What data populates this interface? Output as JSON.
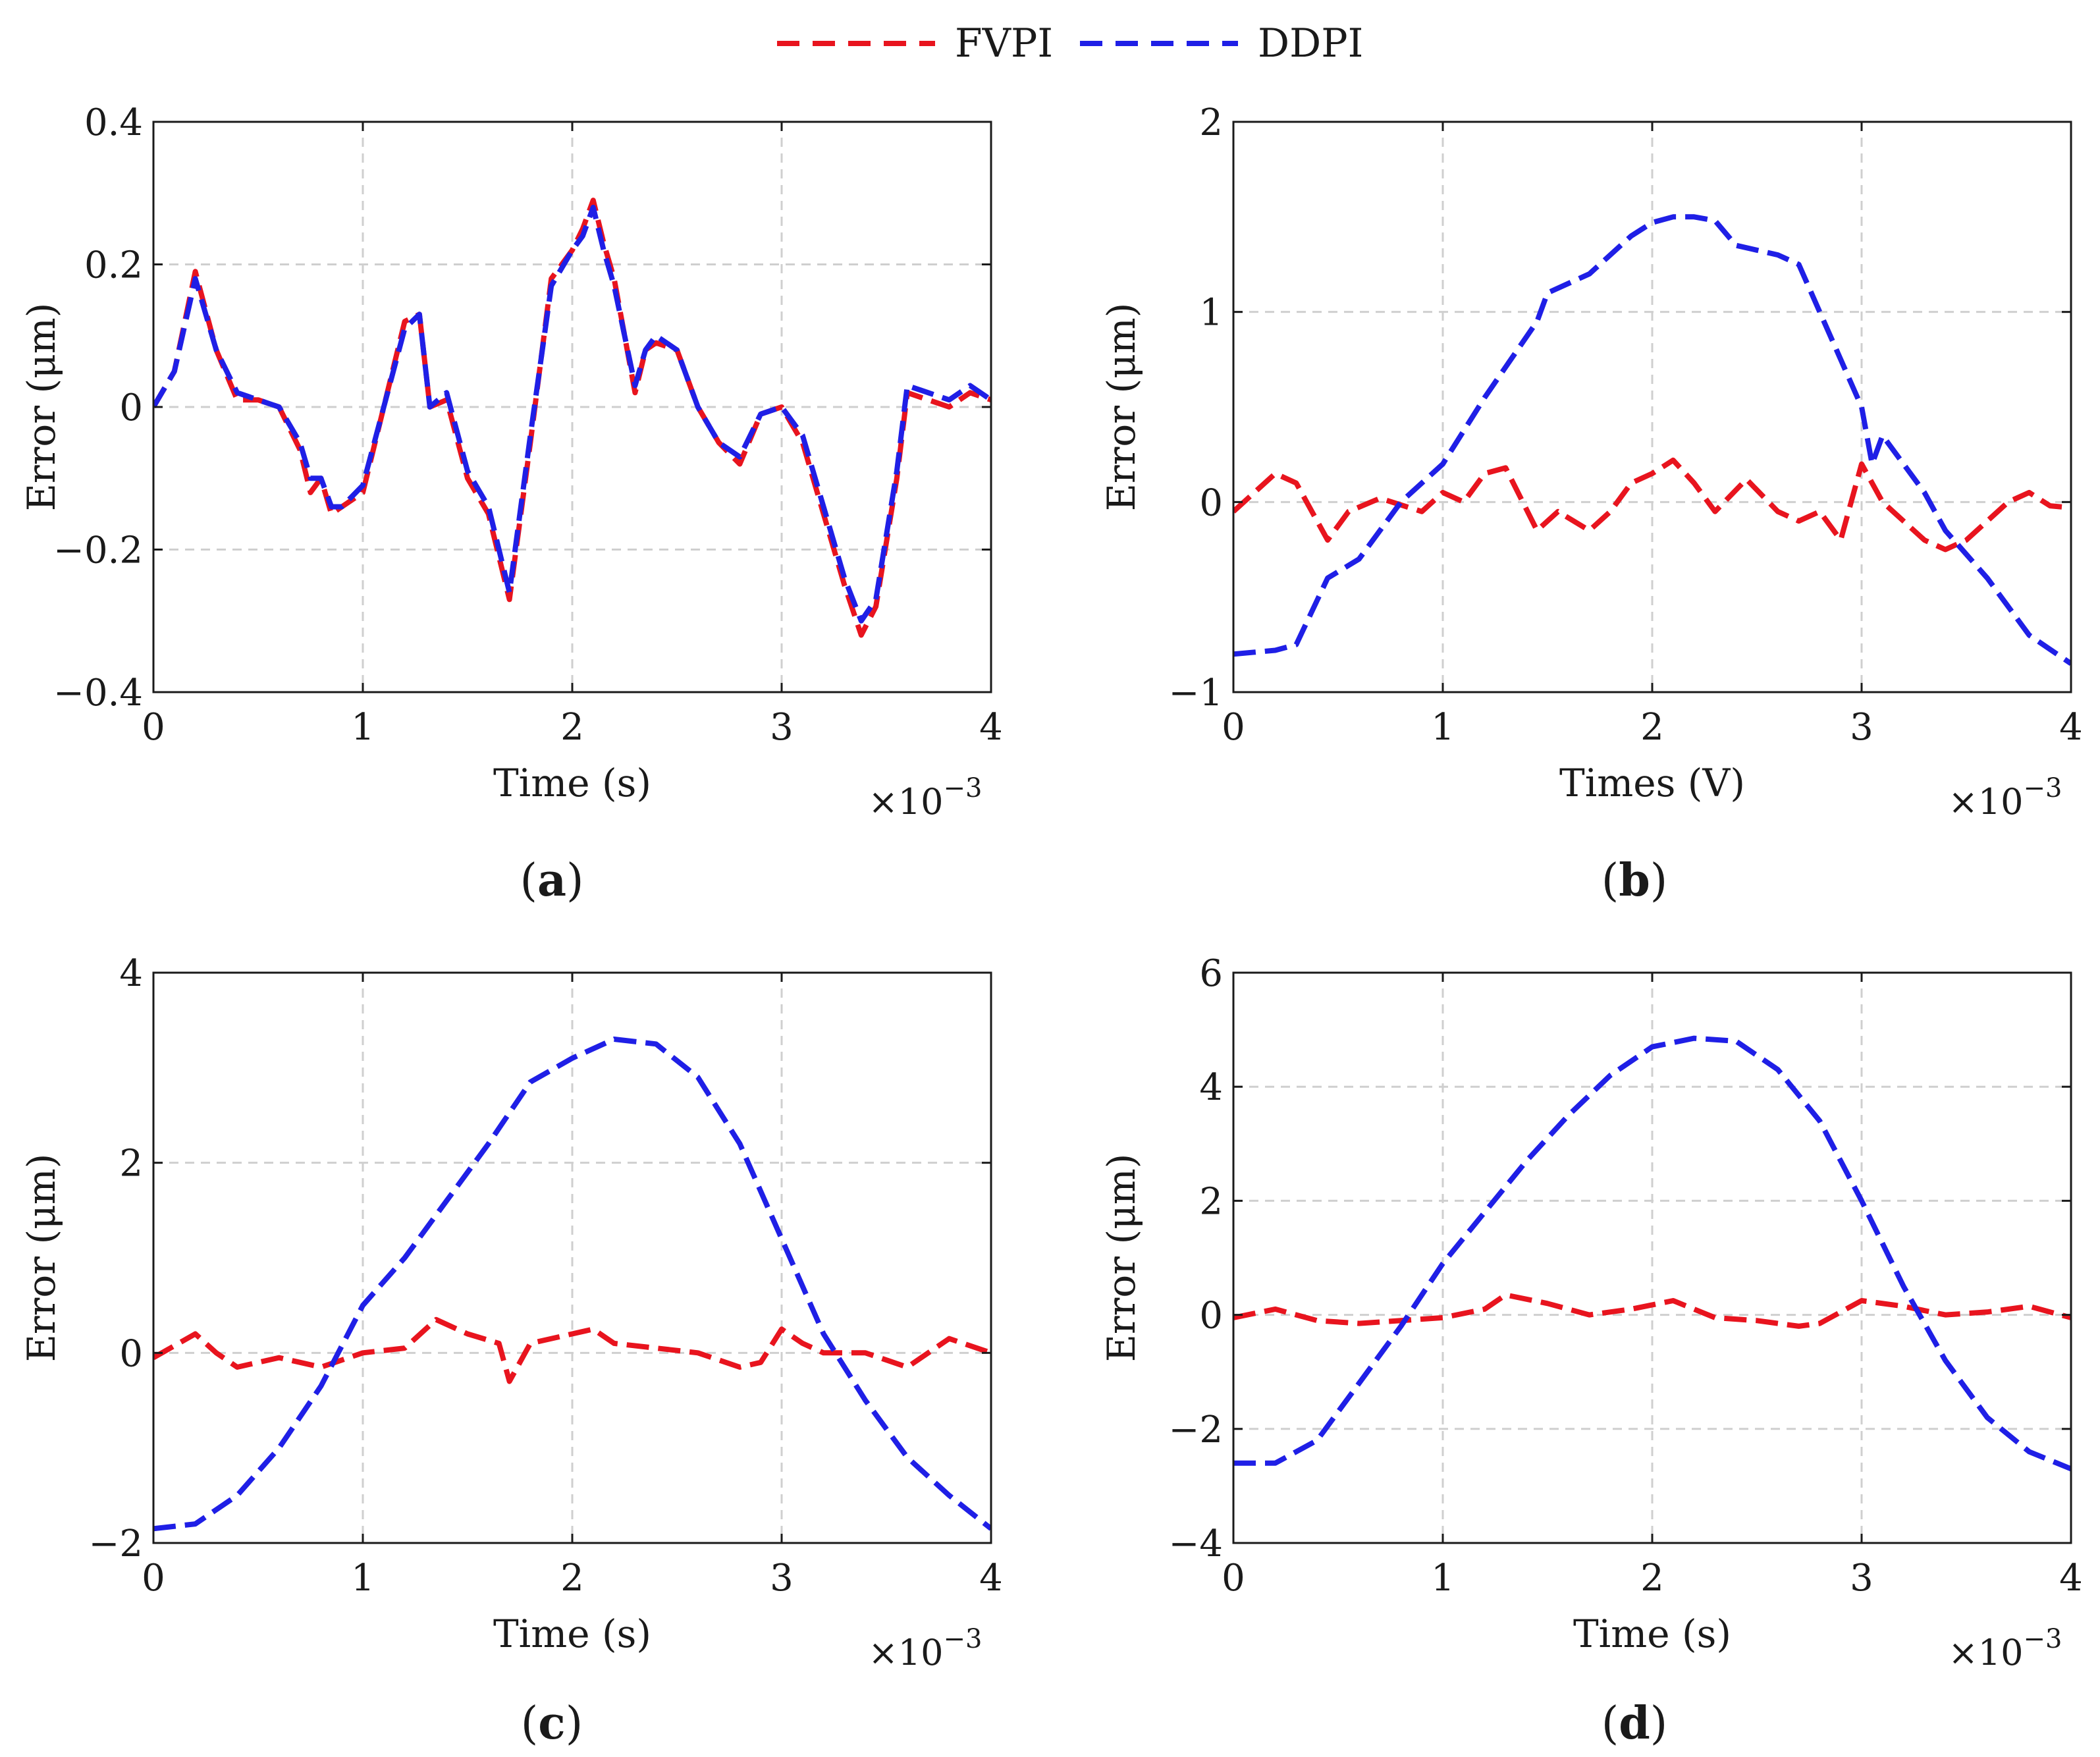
{
  "legend": [
    {
      "name": "FVPI",
      "color": "#e8141e",
      "style": "dashed"
    },
    {
      "name": "DDPI",
      "color": "#1f1fe6",
      "style": "dashed"
    }
  ],
  "chart_data": [
    {
      "type": "line",
      "panel_label": "(a)",
      "panel_letter": "a",
      "xlabel": "Time (s)",
      "ylabel": "Error (μm)",
      "x_multiplier": "×10",
      "x_multiplier_exp": "−3",
      "xlim": [
        0,
        4
      ],
      "ylim": [
        -0.4,
        0.4
      ],
      "xticks": [
        0,
        1,
        2,
        3,
        4
      ],
      "yticks": [
        -0.4,
        -0.2,
        0,
        0.2,
        0.4
      ],
      "ytick_labels": [
        "−0.4",
        "−0.2",
        "0",
        "0.2",
        "0.4"
      ],
      "grid": true,
      "line_style": "dashed",
      "series": [
        {
          "name": "FVPI",
          "color": "#e8141e",
          "x": [
            0,
            0.1,
            0.2,
            0.3,
            0.4,
            0.5,
            0.6,
            0.7,
            0.75,
            0.8,
            0.85,
            0.9,
            1.0,
            1.1,
            1.2,
            1.27,
            1.32,
            1.4,
            1.5,
            1.6,
            1.7,
            1.8,
            1.9,
            2.0,
            2.05,
            2.1,
            2.15,
            2.2,
            2.3,
            2.35,
            2.4,
            2.5,
            2.6,
            2.7,
            2.8,
            2.9,
            3.0,
            3.1,
            3.2,
            3.3,
            3.38,
            3.45,
            3.55,
            3.6,
            3.7,
            3.8,
            3.9,
            4.0
          ],
          "y": [
            0,
            0.05,
            0.19,
            0.08,
            0.01,
            0.01,
            0.0,
            -0.06,
            -0.12,
            -0.1,
            -0.15,
            -0.14,
            -0.12,
            0.0,
            0.12,
            0.13,
            0.0,
            0.01,
            -0.1,
            -0.15,
            -0.27,
            -0.05,
            0.18,
            0.22,
            0.25,
            0.29,
            0.23,
            0.18,
            0.02,
            0.08,
            0.09,
            0.08,
            0.0,
            -0.05,
            -0.08,
            -0.01,
            0.0,
            -0.05,
            -0.15,
            -0.25,
            -0.32,
            -0.28,
            -0.1,
            0.02,
            0.01,
            0.0,
            0.02,
            0.01
          ]
        },
        {
          "name": "DDPI",
          "color": "#1f1fe6",
          "x": [
            0,
            0.1,
            0.2,
            0.3,
            0.4,
            0.5,
            0.6,
            0.7,
            0.75,
            0.8,
            0.85,
            0.9,
            1.0,
            1.1,
            1.2,
            1.27,
            1.32,
            1.4,
            1.5,
            1.6,
            1.7,
            1.8,
            1.9,
            2.0,
            2.05,
            2.1,
            2.15,
            2.2,
            2.3,
            2.35,
            2.4,
            2.5,
            2.6,
            2.7,
            2.8,
            2.9,
            3.0,
            3.1,
            3.2,
            3.3,
            3.38,
            3.45,
            3.55,
            3.6,
            3.7,
            3.8,
            3.9,
            4.0
          ],
          "y": [
            0,
            0.05,
            0.18,
            0.08,
            0.02,
            0.01,
            0.0,
            -0.05,
            -0.1,
            -0.1,
            -0.14,
            -0.14,
            -0.11,
            0.0,
            0.11,
            0.13,
            0.0,
            0.02,
            -0.09,
            -0.14,
            -0.26,
            -0.04,
            0.17,
            0.22,
            0.24,
            0.28,
            0.22,
            0.17,
            0.03,
            0.08,
            0.1,
            0.08,
            0.0,
            -0.05,
            -0.07,
            -0.01,
            0.0,
            -0.04,
            -0.14,
            -0.24,
            -0.3,
            -0.27,
            -0.09,
            0.03,
            0.02,
            0.01,
            0.03,
            0.01
          ]
        }
      ]
    },
    {
      "type": "line",
      "panel_label": "(b)",
      "panel_letter": "b",
      "xlabel": "Times (V)",
      "ylabel": "Error (μm)",
      "x_multiplier": "×10",
      "x_multiplier_exp": "−3",
      "xlim": [
        0,
        4
      ],
      "ylim": [
        -1,
        2
      ],
      "xticks": [
        0,
        1,
        2,
        3,
        4
      ],
      "yticks": [
        -1,
        0,
        1,
        2
      ],
      "ytick_labels": [
        "−1",
        "0",
        "1",
        "2"
      ],
      "grid": true,
      "line_style": "dashed",
      "series": [
        {
          "name": "FVPI",
          "color": "#e8141e",
          "x": [
            0,
            0.2,
            0.3,
            0.45,
            0.55,
            0.7,
            0.9,
            1.0,
            1.1,
            1.2,
            1.3,
            1.45,
            1.55,
            1.7,
            1.8,
            1.9,
            2.0,
            2.1,
            2.2,
            2.3,
            2.45,
            2.6,
            2.7,
            2.8,
            2.9,
            3.0,
            3.1,
            3.2,
            3.3,
            3.4,
            3.5,
            3.6,
            3.7,
            3.8,
            3.9,
            4.0
          ],
          "y": [
            -0.05,
            0.15,
            0.1,
            -0.2,
            -0.05,
            0.02,
            -0.05,
            0.05,
            0.0,
            0.15,
            0.18,
            -0.15,
            -0.05,
            -0.15,
            -0.05,
            0.1,
            0.15,
            0.22,
            0.1,
            -0.05,
            0.12,
            -0.05,
            -0.1,
            -0.05,
            -0.2,
            0.2,
            0.0,
            -0.1,
            -0.2,
            -0.25,
            -0.2,
            -0.1,
            0.0,
            0.05,
            -0.02,
            -0.03
          ]
        },
        {
          "name": "DDPI",
          "color": "#1f1fe6",
          "x": [
            0,
            0.2,
            0.3,
            0.45,
            0.6,
            0.8,
            1.0,
            1.2,
            1.45,
            1.5,
            1.7,
            1.9,
            2.0,
            2.1,
            2.2,
            2.3,
            2.4,
            2.6,
            2.7,
            2.8,
            2.9,
            3.0,
            3.05,
            3.1,
            3.2,
            3.3,
            3.4,
            3.6,
            3.8,
            4.0
          ],
          "y": [
            -0.8,
            -0.78,
            -0.75,
            -0.4,
            -0.3,
            0.0,
            0.2,
            0.55,
            0.95,
            1.1,
            1.2,
            1.4,
            1.47,
            1.5,
            1.5,
            1.48,
            1.35,
            1.3,
            1.25,
            1.0,
            0.75,
            0.5,
            0.2,
            0.35,
            0.2,
            0.05,
            -0.15,
            -0.4,
            -0.7,
            -0.85
          ]
        }
      ]
    },
    {
      "type": "line",
      "panel_label": "(c)",
      "panel_letter": "c",
      "xlabel": "Time (s)",
      "ylabel": "Error (μm)",
      "x_multiplier": "×10",
      "x_multiplier_exp": "−3",
      "xlim": [
        0,
        4
      ],
      "ylim": [
        -2,
        4
      ],
      "xticks": [
        0,
        1,
        2,
        3,
        4
      ],
      "yticks": [
        -2,
        0,
        2,
        4
      ],
      "ytick_labels": [
        "−2",
        "0",
        "2",
        "4"
      ],
      "grid": true,
      "line_style": "dashed",
      "series": [
        {
          "name": "FVPI",
          "color": "#e8141e",
          "x": [
            0,
            0.2,
            0.3,
            0.4,
            0.6,
            0.8,
            1.0,
            1.2,
            1.35,
            1.5,
            1.65,
            1.7,
            1.8,
            2.0,
            2.1,
            2.2,
            2.4,
            2.6,
            2.8,
            2.9,
            3.0,
            3.1,
            3.2,
            3.4,
            3.6,
            3.8,
            4.0
          ],
          "y": [
            -0.05,
            0.2,
            0.0,
            -0.15,
            -0.05,
            -0.15,
            0.0,
            0.05,
            0.35,
            0.2,
            0.1,
            -0.3,
            0.1,
            0.2,
            0.25,
            0.1,
            0.05,
            0.0,
            -0.15,
            -0.1,
            0.25,
            0.1,
            0.0,
            0.0,
            -0.15,
            0.15,
            0.0
          ]
        },
        {
          "name": "DDPI",
          "color": "#1f1fe6",
          "x": [
            0,
            0.2,
            0.4,
            0.6,
            0.8,
            1.0,
            1.2,
            1.4,
            1.6,
            1.8,
            2.0,
            2.2,
            2.4,
            2.6,
            2.8,
            3.0,
            3.2,
            3.4,
            3.6,
            3.8,
            4.0
          ],
          "y": [
            -1.85,
            -1.8,
            -1.5,
            -1.0,
            -0.35,
            0.5,
            1.0,
            1.6,
            2.2,
            2.85,
            3.1,
            3.3,
            3.25,
            2.9,
            2.2,
            1.2,
            0.2,
            -0.5,
            -1.1,
            -1.5,
            -1.85
          ]
        }
      ]
    },
    {
      "type": "line",
      "panel_label": "(d)",
      "panel_letter": "d",
      "xlabel": "Time (s)",
      "ylabel": "Error (μm)",
      "x_multiplier": "×10",
      "x_multiplier_exp": "−3",
      "xlim": [
        0,
        4
      ],
      "ylim": [
        -4,
        6
      ],
      "xticks": [
        0,
        1,
        2,
        3,
        4
      ],
      "yticks": [
        -4,
        -2,
        0,
        2,
        4,
        6
      ],
      "ytick_labels": [
        "−4",
        "−2",
        "0",
        "2",
        "4",
        "6"
      ],
      "grid": true,
      "line_style": "dashed",
      "series": [
        {
          "name": "FVPI",
          "color": "#e8141e",
          "x": [
            0,
            0.2,
            0.4,
            0.6,
            0.8,
            1.0,
            1.2,
            1.3,
            1.5,
            1.7,
            1.9,
            2.1,
            2.3,
            2.5,
            2.7,
            2.8,
            3.0,
            3.2,
            3.4,
            3.6,
            3.8,
            4.0
          ],
          "y": [
            -0.05,
            0.1,
            -0.1,
            -0.15,
            -0.1,
            -0.05,
            0.1,
            0.35,
            0.2,
            0.0,
            0.1,
            0.25,
            -0.05,
            -0.1,
            -0.2,
            -0.15,
            0.25,
            0.15,
            0.0,
            0.05,
            0.15,
            -0.05
          ]
        },
        {
          "name": "DDPI",
          "color": "#1f1fe6",
          "x": [
            0,
            0.2,
            0.4,
            0.6,
            0.8,
            1.0,
            1.2,
            1.4,
            1.6,
            1.8,
            2.0,
            2.2,
            2.4,
            2.6,
            2.8,
            3.0,
            3.2,
            3.4,
            3.6,
            3.8,
            4.0
          ],
          "y": [
            -2.6,
            -2.6,
            -2.2,
            -1.2,
            -0.2,
            0.9,
            1.8,
            2.7,
            3.5,
            4.2,
            4.7,
            4.85,
            4.8,
            4.3,
            3.4,
            2.0,
            0.5,
            -0.8,
            -1.8,
            -2.4,
            -2.7
          ]
        }
      ]
    }
  ]
}
